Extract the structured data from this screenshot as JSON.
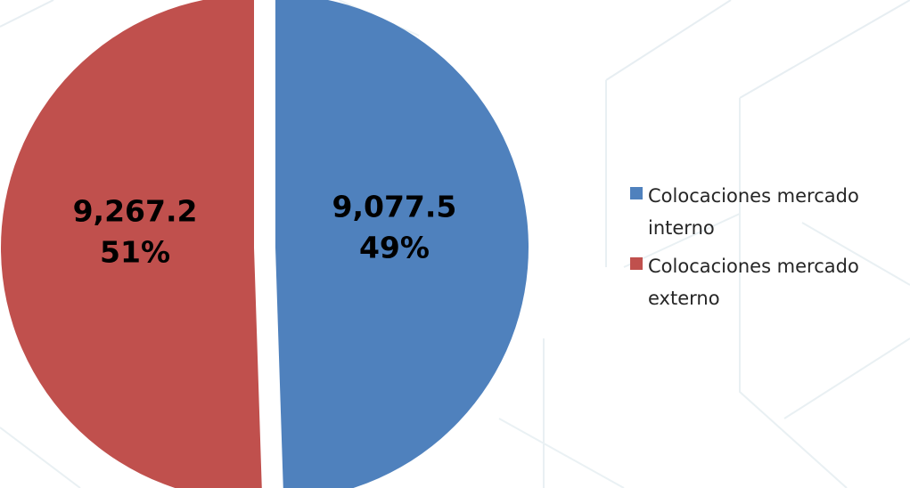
{
  "chart_data": {
    "type": "pie",
    "title": "",
    "slices": [
      {
        "label": "Colocaciones mercado interno",
        "value": 9077.5,
        "value_label": "9,077.5",
        "percent_label": "49%",
        "color": "#4F81BD"
      },
      {
        "label": "Colocaciones mercado externo",
        "value": 9267.2,
        "value_label": "9,267.2",
        "percent_label": "51%",
        "color": "#C0504D"
      }
    ],
    "legend_position": "right",
    "exploded": true
  },
  "colors": {
    "background_pattern": "#e6eef1"
  }
}
